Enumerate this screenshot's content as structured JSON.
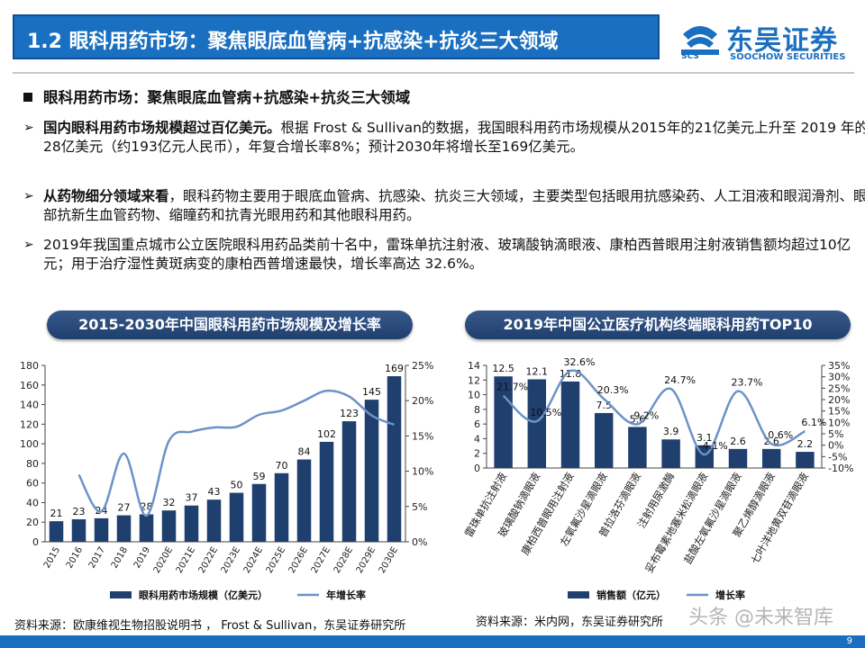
{
  "header": {
    "title": "1.2 眼科用药市场：聚焦眼底血管病+抗感染+抗炎三大领域",
    "logo_name": "东吴证券",
    "logo_en": "SOOCHOW SECURITIES",
    "logo_abbr": "SCS",
    "brand_color": "#1a6fc0"
  },
  "body": {
    "heading": "眼科用药市场：聚焦眼底血管病+抗感染+抗炎三大领域",
    "bullets": [
      {
        "bold": "国内眼科用药市场规模超过百亿美元。",
        "text": "根据 Frost & Sullivan的数据，我国眼科用药市场规模从2015年的21亿美元上升至 2019 年的28亿美元（约193亿元人民币），年复合增长率8%；预计2030年将增长至169亿美元。"
      },
      {
        "bold": "从药物细分领域来看",
        "text": "，眼科药物主要用于眼底血管病、抗感染、抗炎三大领域，主要类型包括眼用抗感染药、人工泪液和眼润滑剂、眼部抗新生血管药物、缩瞳药和抗青光眼用药和其他眼科用药。"
      },
      {
        "bold": "",
        "text": "2019年我国重点城市公立医院眼科用药品类前十名中，雷珠单抗注射液、玻璃酸钠滴眼液、康柏西普眼用注射液销售额均超过10亿元；用于治疗湿性黄斑病变的康柏西普增速最快，增长率高达 32.6%。"
      }
    ]
  },
  "chart_data": [
    {
      "type": "bar",
      "title": "2015-2030年中国眼科用药市场规模及增长率",
      "categories": [
        "2015",
        "2016",
        "2017",
        "2018",
        "2019",
        "2020E",
        "2021E",
        "2022E",
        "2023E",
        "2024E",
        "2025E",
        "2026E",
        "2027E",
        "2028E",
        "2029E",
        "2030E"
      ],
      "series": [
        {
          "name": "眼科用药市场规模（亿美元）",
          "kind": "bar",
          "axis": "left",
          "values": [
            21,
            23,
            24,
            27,
            28,
            32,
            37,
            43,
            50,
            59,
            70,
            84,
            102,
            123,
            145,
            169
          ]
        },
        {
          "name": "年增长率",
          "kind": "line",
          "axis": "right",
          "values": [
            null,
            9.5,
            4.3,
            12.5,
            3.7,
            14.3,
            15.6,
            16.2,
            16.3,
            18.0,
            18.6,
            20.0,
            21.4,
            20.6,
            17.9,
            16.6
          ]
        }
      ],
      "ylim_left": [
        0,
        180
      ],
      "yticks_left": [
        "0",
        "20",
        "40",
        "60",
        "80",
        "100",
        "120",
        "140",
        "160",
        "180"
      ],
      "ylim_right": [
        0,
        25
      ],
      "yticks_right": [
        "0%",
        "5%",
        "10%",
        "15%",
        "20%",
        "25%"
      ],
      "legend": "bottom",
      "source": "资料来源：欧康维视生物招股说明书 ， Frost & Sullivan，东吴证券研究所"
    },
    {
      "type": "bar",
      "title": "2019年中国公立医疗机构终端眼科用药TOP10",
      "categories": [
        "雷珠单抗注射液",
        "玻璃酸钠滴眼液",
        "康柏西普眼用注射液",
        "左氧氟沙星滴眼液",
        "普拉洛芬滴眼液",
        "注射用尿激酶",
        "妥布霉素地塞米松滴眼液",
        "盐酸左氧氟沙星滴眼液",
        "聚乙烯醇滴眼液",
        "七叶洋地黄双苷滴眼液"
      ],
      "series": [
        {
          "name": "销售额（亿元）",
          "kind": "bar",
          "axis": "left",
          "values": [
            12.5,
            12.1,
            11.8,
            7.5,
            5.6,
            3.9,
            3.1,
            2.6,
            2.6,
            2.2
          ],
          "labels": [
            "12.5",
            "12.1",
            "11.8",
            "7.5",
            "5.6",
            "3.9",
            "3.1",
            "2.6",
            "2.6",
            "2.2"
          ]
        },
        {
          "name": "增长率",
          "kind": "line",
          "axis": "right",
          "values": [
            21.7,
            10.5,
            32.6,
            20.3,
            9.2,
            24.7,
            -4.1,
            23.7,
            0.6,
            6.1
          ],
          "labels": [
            "21.7%",
            "10.5%",
            "32.6%",
            "20.3%",
            "9.2%",
            "24.7%",
            "-4.1%",
            "23.7%",
            "0.6%",
            "6.1%"
          ]
        }
      ],
      "ylim_left": [
        0,
        14
      ],
      "yticks_left": [
        "0",
        "2",
        "4",
        "6",
        "8",
        "10",
        "12",
        "14"
      ],
      "ylim_right": [
        -10,
        35
      ],
      "yticks_right": [
        "-10%",
        "-5%",
        "0%",
        "5%",
        "10%",
        "15%",
        "20%",
        "25%",
        "30%",
        "35%"
      ],
      "legend": "bottom",
      "source": "资料来源：米内网，东吴证券研究所"
    }
  ],
  "colors": {
    "bar": "#1f3f6e",
    "line": "#6b93c8",
    "pill": "#2a4a7a"
  },
  "watermark": "头条 @未来智库",
  "page_number": "9"
}
